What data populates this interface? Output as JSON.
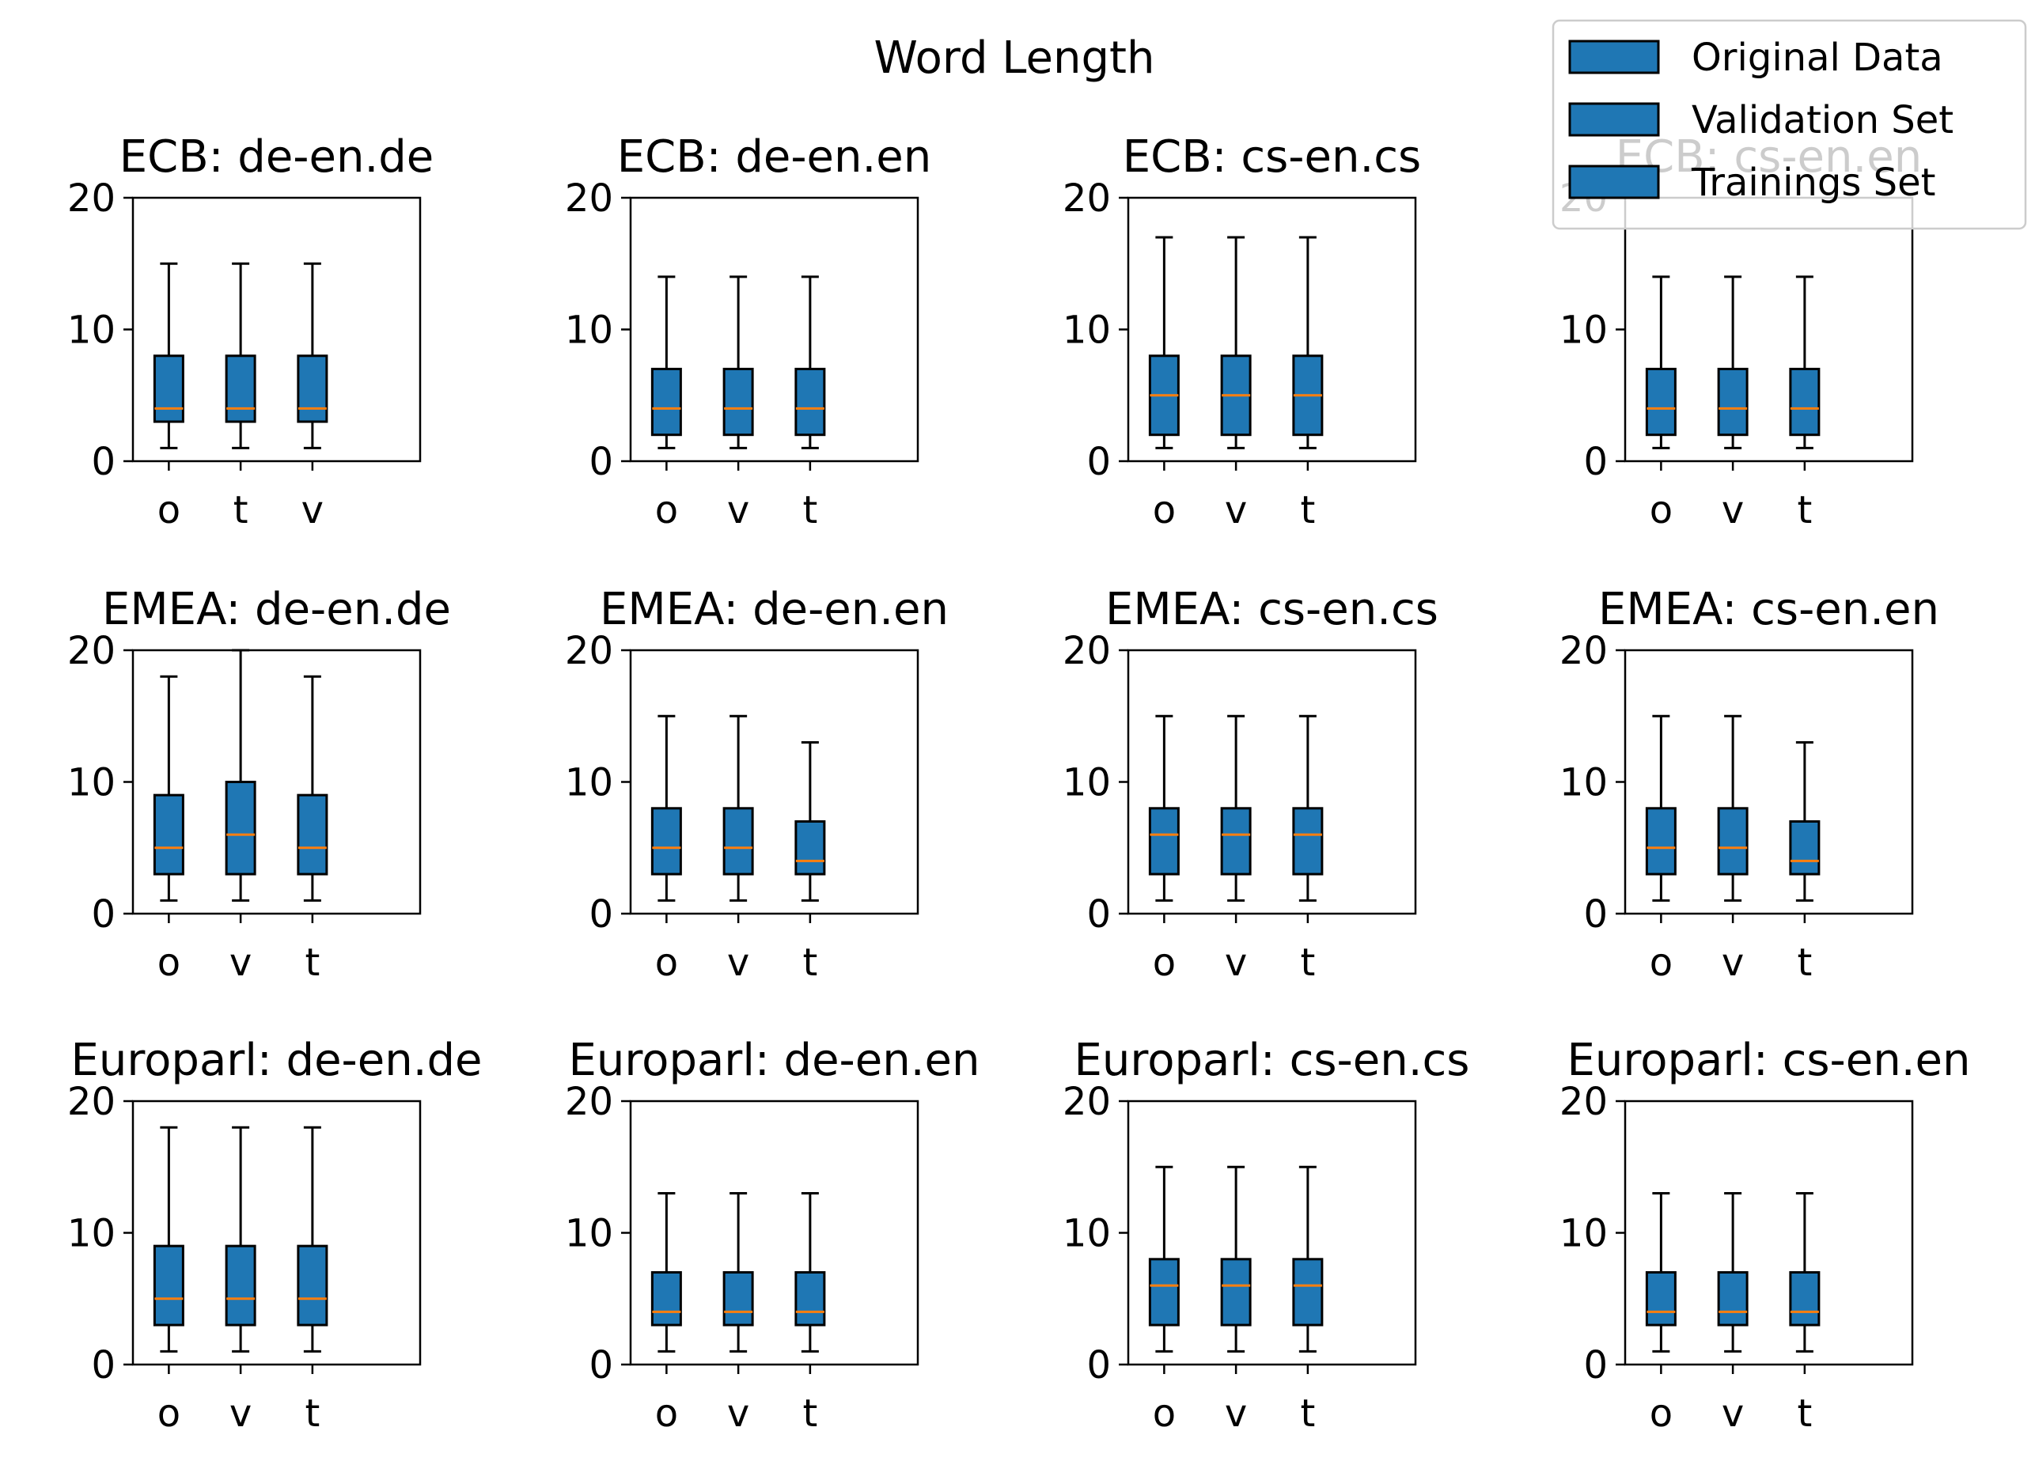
{
  "chart_data": {
    "type": "boxplot",
    "title": "Word Length",
    "ylim": [
      0,
      20
    ],
    "yticks": [
      0,
      10,
      20
    ],
    "box_color": "#1f77b4",
    "median_color": "#ff7f0e",
    "legend": {
      "placement": "top-right",
      "entries": [
        "Original Data",
        "Validation Set",
        "Trainings Set"
      ]
    },
    "panels": [
      {
        "title": "ECB: de-en.de",
        "boxes": [
          {
            "label": "o",
            "whislo": 1,
            "q1": 3,
            "med": 4,
            "q3": 8,
            "whishi": 15
          },
          {
            "label": "t",
            "whislo": 1,
            "q1": 3,
            "med": 4,
            "q3": 8,
            "whishi": 15
          },
          {
            "label": "v",
            "whislo": 1,
            "q1": 3,
            "med": 4,
            "q3": 8,
            "whishi": 15
          }
        ]
      },
      {
        "title": "ECB: de-en.en",
        "boxes": [
          {
            "label": "o",
            "whislo": 1,
            "q1": 2,
            "med": 4,
            "q3": 7,
            "whishi": 14
          },
          {
            "label": "v",
            "whislo": 1,
            "q1": 2,
            "med": 4,
            "q3": 7,
            "whishi": 14
          },
          {
            "label": "t",
            "whislo": 1,
            "q1": 2,
            "med": 4,
            "q3": 7,
            "whishi": 14
          }
        ]
      },
      {
        "title": "ECB: cs-en.cs",
        "boxes": [
          {
            "label": "o",
            "whislo": 1,
            "q1": 2,
            "med": 5,
            "q3": 8,
            "whishi": 17
          },
          {
            "label": "v",
            "whislo": 1,
            "q1": 2,
            "med": 5,
            "q3": 8,
            "whishi": 17
          },
          {
            "label": "t",
            "whislo": 1,
            "q1": 2,
            "med": 5,
            "q3": 8,
            "whishi": 17
          }
        ]
      },
      {
        "title": "ECB: cs-en.en",
        "boxes": [
          {
            "label": "o",
            "whislo": 1,
            "q1": 2,
            "med": 4,
            "q3": 7,
            "whishi": 14
          },
          {
            "label": "v",
            "whislo": 1,
            "q1": 2,
            "med": 4,
            "q3": 7,
            "whishi": 14
          },
          {
            "label": "t",
            "whislo": 1,
            "q1": 2,
            "med": 4,
            "q3": 7,
            "whishi": 14
          }
        ]
      },
      {
        "title": "EMEA: de-en.de",
        "boxes": [
          {
            "label": "o",
            "whislo": 1,
            "q1": 3,
            "med": 5,
            "q3": 9,
            "whishi": 18
          },
          {
            "label": "v",
            "whislo": 1,
            "q1": 3,
            "med": 6,
            "q3": 10,
            "whishi": 20
          },
          {
            "label": "t",
            "whislo": 1,
            "q1": 3,
            "med": 5,
            "q3": 9,
            "whishi": 18
          }
        ]
      },
      {
        "title": "EMEA: de-en.en",
        "boxes": [
          {
            "label": "o",
            "whislo": 1,
            "q1": 3,
            "med": 5,
            "q3": 8,
            "whishi": 15
          },
          {
            "label": "v",
            "whislo": 1,
            "q1": 3,
            "med": 5,
            "q3": 8,
            "whishi": 15
          },
          {
            "label": "t",
            "whislo": 1,
            "q1": 3,
            "med": 4,
            "q3": 7,
            "whishi": 13
          }
        ]
      },
      {
        "title": "EMEA: cs-en.cs",
        "boxes": [
          {
            "label": "o",
            "whislo": 1,
            "q1": 3,
            "med": 6,
            "q3": 8,
            "whishi": 15
          },
          {
            "label": "v",
            "whislo": 1,
            "q1": 3,
            "med": 6,
            "q3": 8,
            "whishi": 15
          },
          {
            "label": "t",
            "whislo": 1,
            "q1": 3,
            "med": 6,
            "q3": 8,
            "whishi": 15
          }
        ]
      },
      {
        "title": "EMEA: cs-en.en",
        "boxes": [
          {
            "label": "o",
            "whislo": 1,
            "q1": 3,
            "med": 5,
            "q3": 8,
            "whishi": 15
          },
          {
            "label": "v",
            "whislo": 1,
            "q1": 3,
            "med": 5,
            "q3": 8,
            "whishi": 15
          },
          {
            "label": "t",
            "whislo": 1,
            "q1": 3,
            "med": 4,
            "q3": 7,
            "whishi": 13
          }
        ]
      },
      {
        "title": "Europarl: de-en.de",
        "boxes": [
          {
            "label": "o",
            "whislo": 1,
            "q1": 3,
            "med": 5,
            "q3": 9,
            "whishi": 18
          },
          {
            "label": "v",
            "whislo": 1,
            "q1": 3,
            "med": 5,
            "q3": 9,
            "whishi": 18
          },
          {
            "label": "t",
            "whislo": 1,
            "q1": 3,
            "med": 5,
            "q3": 9,
            "whishi": 18
          }
        ]
      },
      {
        "title": "Europarl: de-en.en",
        "boxes": [
          {
            "label": "o",
            "whislo": 1,
            "q1": 3,
            "med": 4,
            "q3": 7,
            "whishi": 13
          },
          {
            "label": "v",
            "whislo": 1,
            "q1": 3,
            "med": 4,
            "q3": 7,
            "whishi": 13
          },
          {
            "label": "t",
            "whislo": 1,
            "q1": 3,
            "med": 4,
            "q3": 7,
            "whishi": 13
          }
        ]
      },
      {
        "title": "Europarl: cs-en.cs",
        "boxes": [
          {
            "label": "o",
            "whislo": 1,
            "q1": 3,
            "med": 6,
            "q3": 8,
            "whishi": 15
          },
          {
            "label": "v",
            "whislo": 1,
            "q1": 3,
            "med": 6,
            "q3": 8,
            "whishi": 15
          },
          {
            "label": "t",
            "whislo": 1,
            "q1": 3,
            "med": 6,
            "q3": 8,
            "whishi": 15
          }
        ]
      },
      {
        "title": "Europarl: cs-en.en",
        "boxes": [
          {
            "label": "o",
            "whislo": 1,
            "q1": 3,
            "med": 4,
            "q3": 7,
            "whishi": 13
          },
          {
            "label": "v",
            "whislo": 1,
            "q1": 3,
            "med": 4,
            "q3": 7,
            "whishi": 13
          },
          {
            "label": "t",
            "whislo": 1,
            "q1": 3,
            "med": 4,
            "q3": 7,
            "whishi": 13
          }
        ]
      }
    ]
  }
}
